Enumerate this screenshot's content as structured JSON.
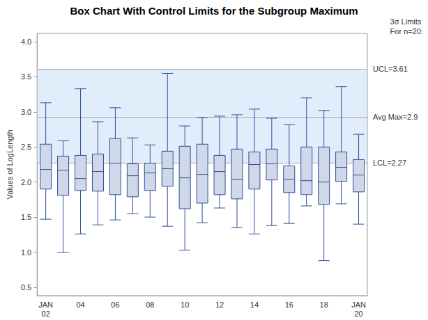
{
  "chart_data": {
    "type": "boxplot",
    "title": "Box Chart With Control Limits for the Subgroup Maximum",
    "y_label": "Values of LogLength",
    "categories": [
      "JAN\n02",
      null,
      "04",
      null,
      "06",
      null,
      "08",
      null,
      "10",
      null,
      "12",
      null,
      "14",
      null,
      "16",
      null,
      "18",
      null,
      "JAN\n20"
    ],
    "boxes": [
      [
        1.47,
        1.9,
        2.18,
        2.54,
        3.13
      ],
      [
        1.0,
        1.81,
        2.17,
        2.37,
        2.59
      ],
      [
        1.26,
        1.88,
        2.05,
        2.38,
        3.33
      ],
      [
        1.39,
        1.87,
        2.15,
        2.4,
        2.86
      ],
      [
        1.46,
        1.82,
        2.27,
        2.62,
        3.06
      ],
      [
        1.55,
        1.79,
        2.09,
        2.26,
        2.63
      ],
      [
        1.5,
        1.88,
        2.13,
        2.27,
        2.53
      ],
      [
        1.37,
        1.94,
        2.19,
        2.44,
        3.55
      ],
      [
        1.03,
        1.62,
        2.06,
        2.51,
        2.8
      ],
      [
        1.42,
        1.7,
        2.11,
        2.54,
        2.92
      ],
      [
        1.63,
        1.82,
        2.15,
        2.38,
        2.94
      ],
      [
        1.35,
        1.76,
        2.04,
        2.47,
        2.96
      ],
      [
        1.26,
        1.9,
        2.25,
        2.43,
        3.04
      ],
      [
        1.38,
        2.03,
        2.26,
        2.47,
        2.91
      ],
      [
        1.41,
        1.85,
        2.04,
        2.23,
        2.82
      ],
      [
        1.66,
        1.82,
        2.02,
        2.5,
        3.2
      ],
      [
        0.88,
        1.68,
        2.0,
        2.5,
        3.02
      ],
      [
        1.69,
        2.01,
        2.21,
        2.43,
        3.36
      ],
      [
        1.4,
        1.86,
        2.1,
        2.32,
        2.68
      ]
    ],
    "control_limits": [
      {
        "value": 3.61,
        "label": "UCL=3.61"
      },
      {
        "value": 2.93,
        "label": "Avg Max=2.9"
      },
      {
        "value": 2.27,
        "label": "LCL=2.27"
      }
    ],
    "limits_note": [
      "3σ Limits",
      "For n=20:"
    ],
    "color": "#2e4f9b",
    "ylim": [
      0.38,
      4.12
    ],
    "yticks": [
      0.5,
      {
        "value": 1,
        "label": "1.0"
      },
      1.5,
      {
        "value": 2,
        "label": "2.0"
      },
      2.5,
      {
        "value": 3,
        "label": "3.0"
      },
      3.5,
      {
        "value": 4,
        "label": "4.0"
      }
    ],
    "grid": false
  }
}
